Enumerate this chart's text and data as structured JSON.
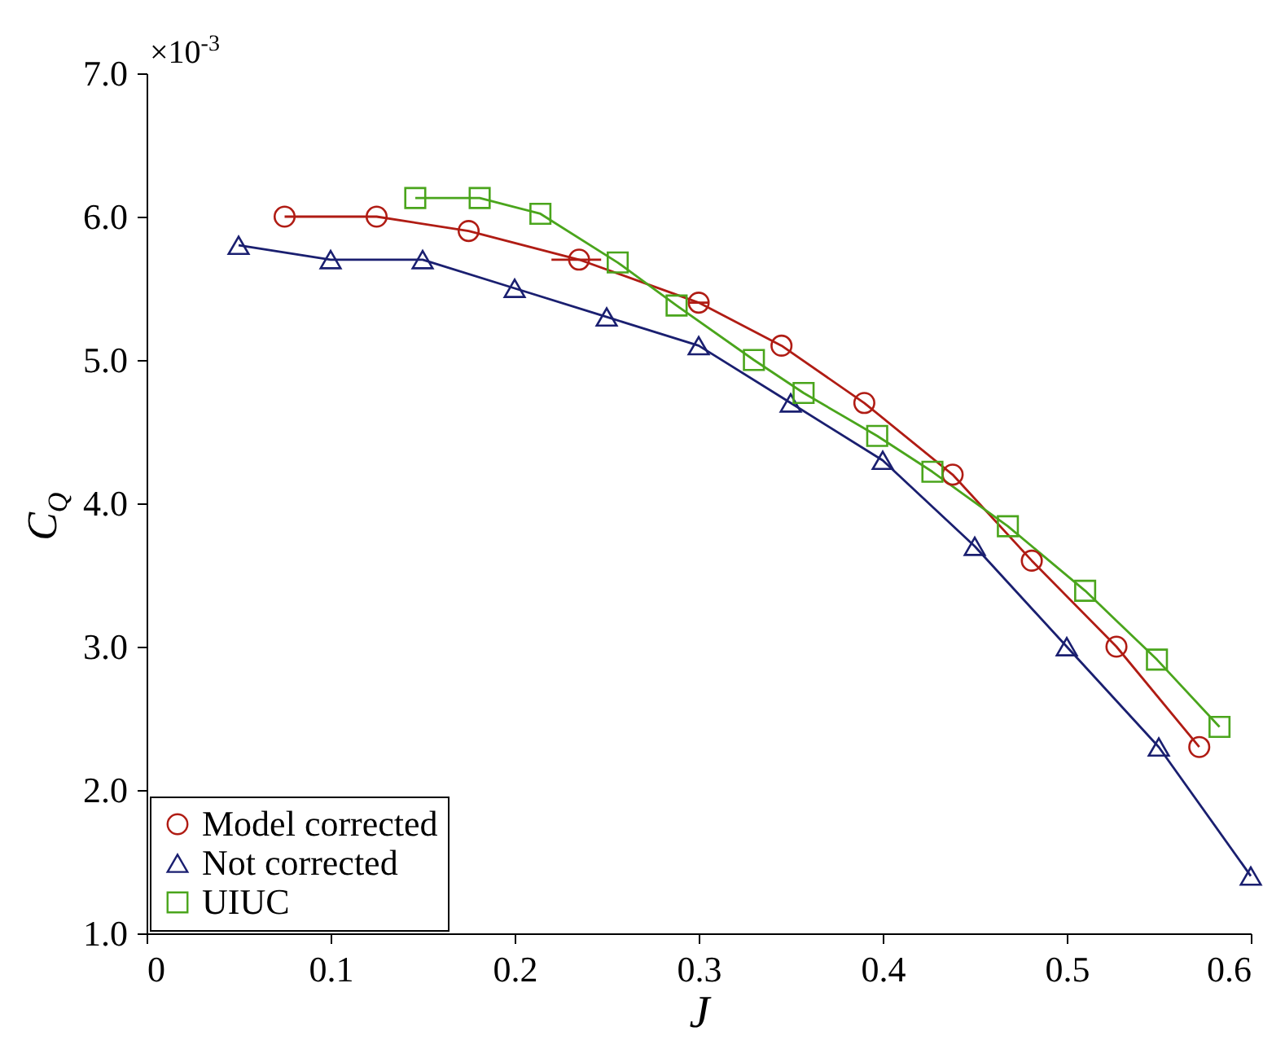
{
  "chart_data": {
    "type": "line",
    "xlabel": "J",
    "ylabel": "C$_{Q}$",
    "annotations": [
      "×10$^{-3}$"
    ],
    "xlim": [
      0,
      0.6
    ],
    "xticks": [
      0,
      0.1,
      0.2,
      0.3,
      0.4,
      0.5,
      0.6
    ],
    "ylim": [
      1,
      7
    ],
    "yticks": [
      {
        "value": 1,
        "label": "1.0"
      },
      {
        "value": 2,
        "label": "2.0"
      },
      {
        "value": 3,
        "label": "3.0"
      },
      {
        "value": 4,
        "label": "4.0"
      },
      {
        "value": 5,
        "label": "5.0"
      },
      {
        "value": 6,
        "label": "6.0"
      },
      {
        "value": 7,
        "label": "7.0"
      }
    ],
    "grid": false,
    "legend": "bottom left",
    "series": [
      {
        "name": "Model corrected",
        "color": "#b01c14",
        "marker": "circle",
        "x": [
          0.075,
          0.125,
          0.175,
          0.235,
          0.3,
          0.345,
          0.39,
          0.438,
          0.481,
          0.527,
          0.572
        ],
        "values": [
          6.0,
          6.0,
          5.9,
          5.7,
          5.4,
          5.1,
          4.7,
          4.2,
          3.6,
          3.0,
          2.3
        ],
        "xerrors": [
          null,
          null,
          null,
          [
            0.22,
            0.247
          ],
          [
            0.295,
            0.305
          ],
          null,
          null,
          null,
          null,
          null,
          null
        ]
      },
      {
        "name": "Not corrected",
        "color": "#1a1f70",
        "marker": "triangle",
        "x": [
          0.05,
          0.1,
          0.15,
          0.2,
          0.25,
          0.3,
          0.35,
          0.4,
          0.45,
          0.5,
          0.55,
          0.6
        ],
        "values": [
          5.8,
          5.7,
          5.7,
          5.5,
          5.3,
          5.1,
          4.7,
          4.3,
          3.7,
          3.0,
          2.3,
          1.4
        ]
      },
      {
        "name": "UIUC",
        "color": "#4aa51c",
        "marker": "square",
        "x": [
          0.146,
          0.181,
          0.214,
          0.256,
          0.288,
          0.33,
          0.357,
          0.397,
          0.427,
          0.468,
          0.51,
          0.549,
          0.583
        ],
        "values": [
          6.13,
          6.13,
          6.02,
          5.68,
          5.38,
          5.0,
          4.77,
          4.47,
          4.22,
          3.84,
          3.39,
          2.91,
          2.44
        ]
      }
    ]
  }
}
